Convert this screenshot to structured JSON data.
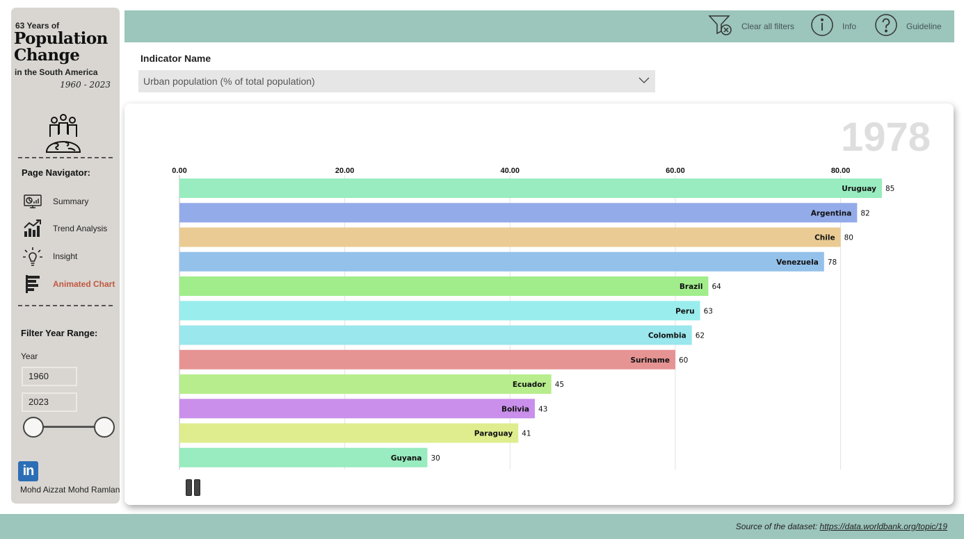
{
  "sidebar": {
    "title_small": "63 Years of",
    "title_big_1": "Population",
    "title_big_2": "Change",
    "title_sub": "in the South America",
    "title_years": "1960 - 2023",
    "icon": "people-globe-icon",
    "nav_title": "Page Navigator:",
    "nav_items": [
      {
        "label": "Summary",
        "icon": "dashboard-icon"
      },
      {
        "label": "Trend Analysis",
        "icon": "trend-chart-icon"
      },
      {
        "label": "Insight",
        "icon": "lightbulb-icon"
      },
      {
        "label": "Animated Chart",
        "icon": "bar-chart-icon",
        "active": true
      }
    ],
    "filter_title": "Filter Year Range:",
    "year_label": "Year",
    "year_from": "1960",
    "year_to": "2023",
    "author": "Mohd Aizzat Mohd Ramlan",
    "linkedin_text": "in"
  },
  "topbar": {
    "clear_filters": "Clear all filters",
    "info": "Info",
    "guideline": "Guideline"
  },
  "indicator": {
    "label": "Indicator Name",
    "value": "Urban population (% of total population)"
  },
  "chart_data": {
    "type": "bar",
    "orientation": "horizontal",
    "year": "1978",
    "categories": [
      "Uruguay",
      "Argentina",
      "Chile",
      "Venezuela",
      "Brazil",
      "Peru",
      "Colombia",
      "Suriname",
      "Ecuador",
      "Bolivia",
      "Paraguay",
      "Guyana"
    ],
    "values": [
      85,
      82,
      80,
      78,
      64,
      63,
      62,
      60,
      45,
      43,
      41,
      30
    ],
    "colors": [
      "#98ecbf",
      "#94abea",
      "#eacb94",
      "#94c1ea",
      "#a1ed8c",
      "#9aeded",
      "#9ae7ed",
      "#e69393",
      "#b7ed8c",
      "#c98fea",
      "#dfed8e",
      "#98ecbf"
    ],
    "xticks": [
      "0.00",
      "20.00",
      "40.00",
      "60.00",
      "80.00"
    ],
    "xtick_values": [
      0,
      20,
      40,
      60,
      80
    ],
    "xlim": [
      0,
      85
    ],
    "grid": true
  },
  "footer": {
    "source_label": "Source of the dataset:",
    "source_link": "https://data.worldbank.org/topic/19"
  }
}
